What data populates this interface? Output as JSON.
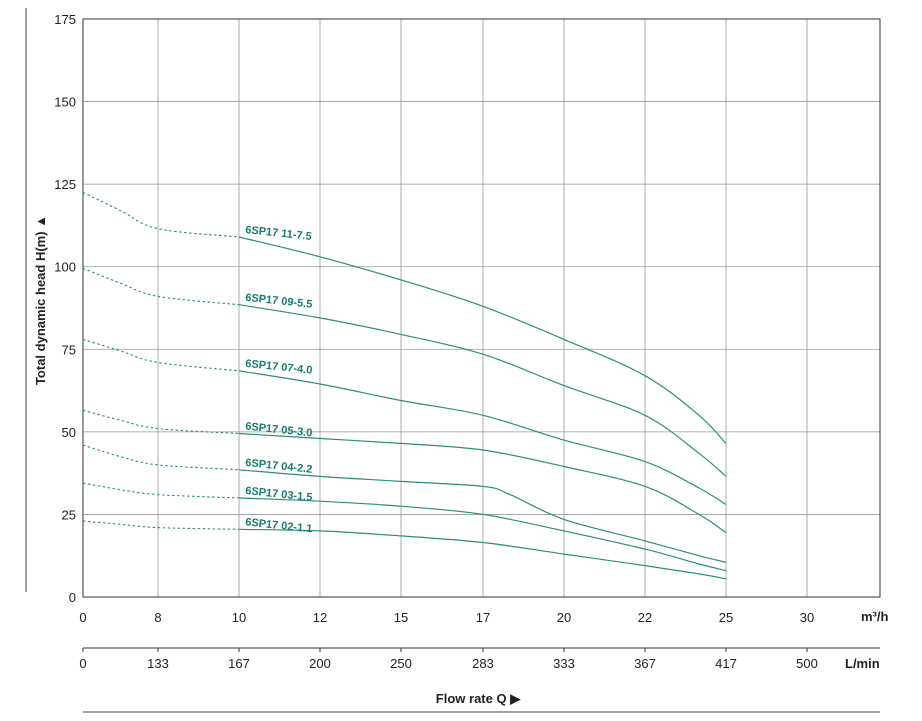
{
  "chart_data": {
    "type": "line",
    "title": "",
    "ylabel": "Total dynamic head H(m) ▲",
    "xlabel": "Flow rate Q ▶",
    "x_unit": "m³/h",
    "x2_unit": "L/min",
    "ylim": [
      0,
      175
    ],
    "yticks": [
      0,
      25,
      50,
      75,
      100,
      125,
      150,
      175
    ],
    "xticks": [
      0,
      8,
      10,
      12,
      15,
      17,
      20,
      22,
      25,
      30
    ],
    "x2_ticks": [
      "0",
      "133",
      "167",
      "200",
      "250",
      "283",
      "333",
      "367",
      "417",
      "500"
    ],
    "grid": true,
    "colors": {
      "curve": "#2e8c7e",
      "label": "#1a7a6c",
      "grid": "#999999",
      "frame": "#333333"
    },
    "series": [
      {
        "name": "6SP17 11-7.5",
        "dashed": {
          "x": [
            0,
            4,
            8,
            10
          ],
          "y": [
            122.5,
            117,
            111.5,
            109
          ]
        },
        "solid": {
          "x": [
            10,
            12,
            15,
            17,
            20,
            22,
            24,
            25
          ],
          "y": [
            109,
            103,
            96,
            88,
            78,
            67,
            55,
            46.5
          ]
        }
      },
      {
        "name": "6SP17 09-5.5",
        "dashed": {
          "x": [
            0,
            4,
            8,
            10
          ],
          "y": [
            99.5,
            95,
            91,
            88.5
          ]
        },
        "solid": {
          "x": [
            10,
            12,
            15,
            17,
            20,
            22,
            24,
            25
          ],
          "y": [
            88.5,
            84.5,
            79.5,
            73.5,
            64,
            55,
            43.5,
            36.5
          ]
        }
      },
      {
        "name": "6SP17 07-4.0",
        "dashed": {
          "x": [
            0,
            4,
            8,
            10
          ],
          "y": [
            78,
            74.5,
            71,
            68.5
          ]
        },
        "solid": {
          "x": [
            10,
            12,
            15,
            17,
            20,
            22,
            24,
            25
          ],
          "y": [
            68.5,
            64.5,
            59.5,
            55,
            47.5,
            41,
            33,
            28
          ]
        }
      },
      {
        "name": "6SP17 05-3.0",
        "dashed": {
          "x": [
            0,
            4,
            8,
            10
          ],
          "y": [
            56.5,
            53.5,
            51,
            49.5
          ]
        },
        "solid": {
          "x": [
            10,
            12,
            15,
            17,
            20,
            22,
            24,
            25
          ],
          "y": [
            49.5,
            48,
            46.5,
            44.5,
            39.5,
            33.5,
            25,
            19.5
          ]
        }
      },
      {
        "name": "6SP17 04-2.2",
        "dashed": {
          "x": [
            0,
            4,
            8,
            10
          ],
          "y": [
            46,
            42.5,
            40,
            38.5
          ]
        },
        "solid": {
          "x": [
            10,
            12,
            15,
            17,
            18,
            20,
            22,
            24,
            25
          ],
          "y": [
            38.5,
            36.5,
            35,
            33.5,
            31,
            23.5,
            17,
            12.5,
            10.5
          ]
        }
      },
      {
        "name": "6SP17 03-1.5",
        "dashed": {
          "x": [
            0,
            4,
            8,
            10
          ],
          "y": [
            34.5,
            32.5,
            31,
            30
          ]
        },
        "solid": {
          "x": [
            10,
            12,
            15,
            17,
            20,
            22,
            24,
            25
          ],
          "y": [
            30,
            29,
            27.5,
            25,
            20,
            14.5,
            10,
            8
          ]
        }
      },
      {
        "name": "6SP17 02-1.1",
        "dashed": {
          "x": [
            0,
            4,
            8,
            10
          ],
          "y": [
            23,
            22,
            21,
            20.5
          ]
        },
        "solid": {
          "x": [
            10,
            12,
            15,
            17,
            20,
            22,
            24,
            25
          ],
          "y": [
            20.5,
            20,
            18.5,
            16.5,
            13,
            9.5,
            7,
            5.5
          ]
        }
      }
    ]
  }
}
